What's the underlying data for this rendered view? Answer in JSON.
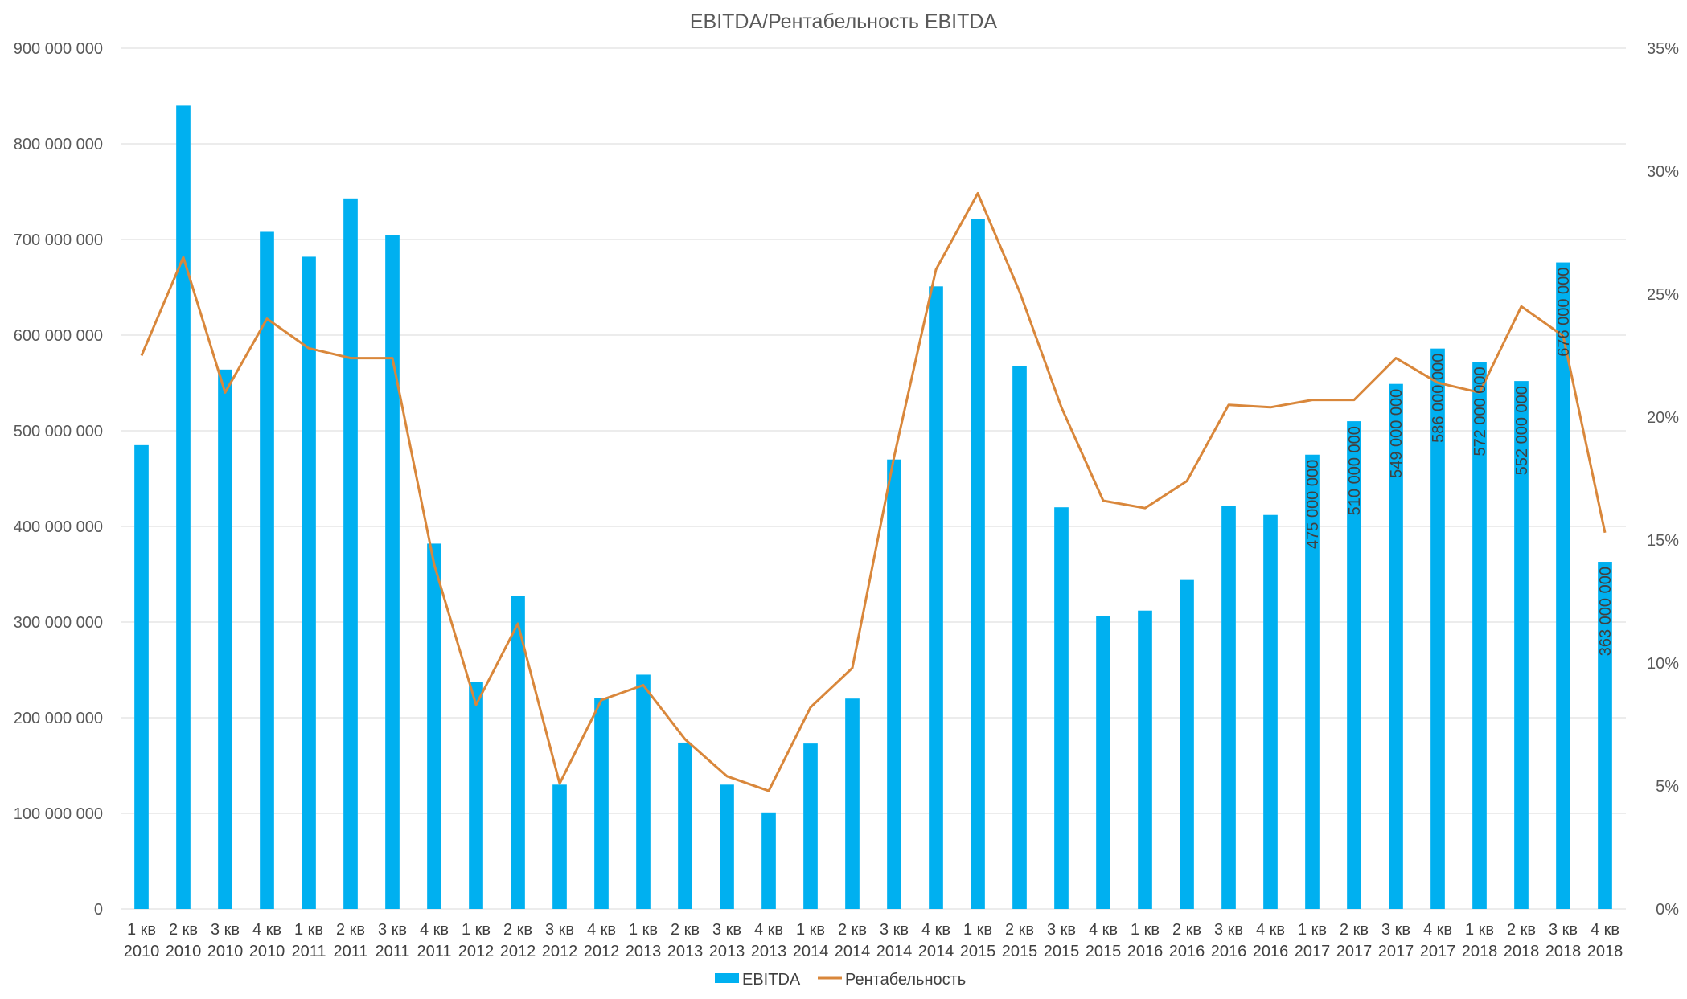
{
  "chart_data": {
    "type": "bar+line",
    "title": "EBITDA/Рентабельность EBITDA",
    "categories": [
      [
        "1 кв",
        "2010"
      ],
      [
        "2 кв",
        "2010"
      ],
      [
        "3 кв",
        "2010"
      ],
      [
        "4 кв",
        "2010"
      ],
      [
        "1 кв",
        "2011"
      ],
      [
        "2 кв",
        "2011"
      ],
      [
        "3 кв",
        "2011"
      ],
      [
        "4 кв",
        "2011"
      ],
      [
        "1 кв",
        "2012"
      ],
      [
        "2 кв",
        "2012"
      ],
      [
        "3 кв",
        "2012"
      ],
      [
        "4 кв",
        "2012"
      ],
      [
        "1 кв",
        "2013"
      ],
      [
        "2 кв",
        "2013"
      ],
      [
        "3 кв",
        "2013"
      ],
      [
        "4 кв",
        "2013"
      ],
      [
        "1 кв",
        "2014"
      ],
      [
        "2 кв",
        "2014"
      ],
      [
        "3 кв",
        "2014"
      ],
      [
        "4 кв",
        "2014"
      ],
      [
        "1 кв",
        "2015"
      ],
      [
        "2 кв",
        "2015"
      ],
      [
        "3 кв",
        "2015"
      ],
      [
        "4 кв",
        "2015"
      ],
      [
        "1 кв",
        "2016"
      ],
      [
        "2 кв",
        "2016"
      ],
      [
        "3 кв",
        "2016"
      ],
      [
        "4 кв",
        "2016"
      ],
      [
        "1 кв",
        "2017"
      ],
      [
        "2 кв",
        "2017"
      ],
      [
        "3 кв",
        "2017"
      ],
      [
        "4 кв",
        "2017"
      ],
      [
        "1 кв",
        "2018"
      ],
      [
        "2 кв",
        "2018"
      ],
      [
        "3 кв",
        "2018"
      ],
      [
        "4 кв",
        "2018"
      ]
    ],
    "series": [
      {
        "name": "EBITDA",
        "type": "bar",
        "axis": "left",
        "color": "#00b0f0",
        "values": [
          485000000,
          840000000,
          564000000,
          708000000,
          682000000,
          743000000,
          705000000,
          382000000,
          237000000,
          327000000,
          130000000,
          221000000,
          245000000,
          174000000,
          130000000,
          101000000,
          173000000,
          220000000,
          470000000,
          651000000,
          721000000,
          568000000,
          420000000,
          306000000,
          312000000,
          344000000,
          421000000,
          412000000,
          475000000,
          510000000,
          549000000,
          586000000,
          572000000,
          552000000,
          676000000,
          363000000
        ],
        "data_labels": [
          null,
          null,
          null,
          null,
          null,
          null,
          null,
          null,
          null,
          null,
          null,
          null,
          null,
          null,
          null,
          null,
          null,
          null,
          null,
          null,
          null,
          null,
          null,
          null,
          null,
          null,
          null,
          null,
          "475 000 000",
          "510 000 000",
          "549 000 000",
          "586 000 000",
          "572 000 000",
          "552 000 000",
          "676 000 000",
          "363 000 000"
        ]
      },
      {
        "name": "Рентабельность",
        "type": "line",
        "axis": "right",
        "color": "#d9873b",
        "values": [
          22.5,
          26.5,
          21.0,
          24.0,
          22.8,
          22.4,
          22.4,
          14.0,
          8.3,
          11.6,
          5.1,
          8.5,
          9.1,
          6.9,
          5.4,
          4.8,
          8.2,
          9.8,
          18.4,
          26.0,
          29.1,
          25.1,
          20.4,
          16.6,
          16.3,
          17.4,
          20.5,
          20.4,
          20.7,
          20.7,
          22.4,
          21.4,
          21.0,
          24.5,
          23.3,
          15.3
        ]
      }
    ],
    "y_left": {
      "min": 0,
      "max": 900000000,
      "step": 100000000,
      "tick_labels": [
        "0",
        "100 000 000",
        "200 000 000",
        "300 000 000",
        "400 000 000",
        "500 000 000",
        "600 000 000",
        "700 000 000",
        "800 000 000",
        "900 000 000"
      ]
    },
    "y_right": {
      "min": 0,
      "max": 35,
      "step": 5,
      "tick_labels": [
        "0%",
        "5%",
        "10%",
        "15%",
        "20%",
        "25%",
        "30%",
        "35%"
      ]
    },
    "grid": true,
    "legend": {
      "position": "bottom",
      "entries": [
        "EBITDA",
        "Рентабельность"
      ]
    }
  }
}
